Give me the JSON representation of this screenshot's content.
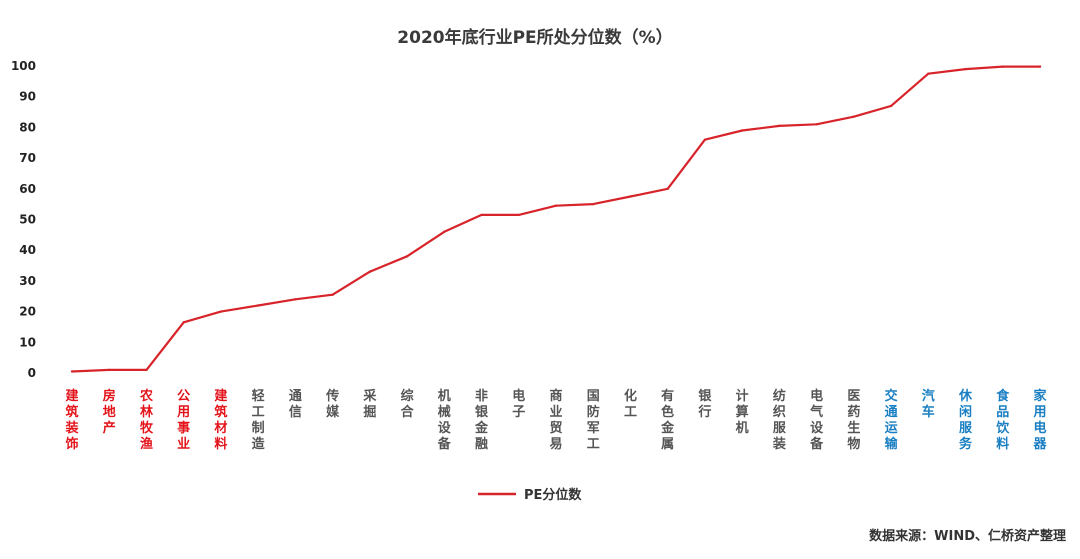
{
  "chart_data": {
    "type": "line",
    "title": "2020年底行业PE所处分位数（%）",
    "xlabel": "",
    "ylabel": "",
    "ylim": [
      0,
      100
    ],
    "yticks": [
      0,
      10,
      20,
      30,
      40,
      50,
      60,
      70,
      80,
      90,
      100
    ],
    "grid": false,
    "legend_position": "bottom-center",
    "categories": [
      "建筑装饰",
      "房地产",
      "农林牧渔",
      "公用事业",
      "建筑材料",
      "轻工制造",
      "通信",
      "传媒",
      "采掘",
      "综合",
      "机械设备",
      "非银金融",
      "电子",
      "商业贸易",
      "国防军工",
      "化工",
      "有色金属",
      "银行",
      "计算机",
      "纺织服装",
      "电气设备",
      "医药生物",
      "交通运输",
      "汽车",
      "休闲服务",
      "食品饮料",
      "家用电器"
    ],
    "category_colors": [
      "#e3141b",
      "#e3141b",
      "#e3141b",
      "#e3141b",
      "#e3141b",
      "#555555",
      "#555555",
      "#555555",
      "#555555",
      "#555555",
      "#555555",
      "#555555",
      "#555555",
      "#555555",
      "#555555",
      "#555555",
      "#555555",
      "#555555",
      "#555555",
      "#555555",
      "#555555",
      "#555555",
      "#1a7fc2",
      "#1a7fc2",
      "#1a7fc2",
      "#1a7fc2",
      "#1a7fc2"
    ],
    "series": [
      {
        "name": "PE分位数",
        "color": "#d7242a",
        "values": [
          0.5,
          1,
          1,
          16.5,
          20,
          22,
          24,
          25.5,
          33,
          38,
          46,
          51.5,
          51.5,
          54.5,
          55,
          57.5,
          60,
          76,
          79,
          80.5,
          81,
          83.5,
          87,
          97.5,
          99,
          99.8,
          99.8
        ]
      }
    ]
  },
  "source_text": "数据来源：WIND、仁桥资产整理"
}
